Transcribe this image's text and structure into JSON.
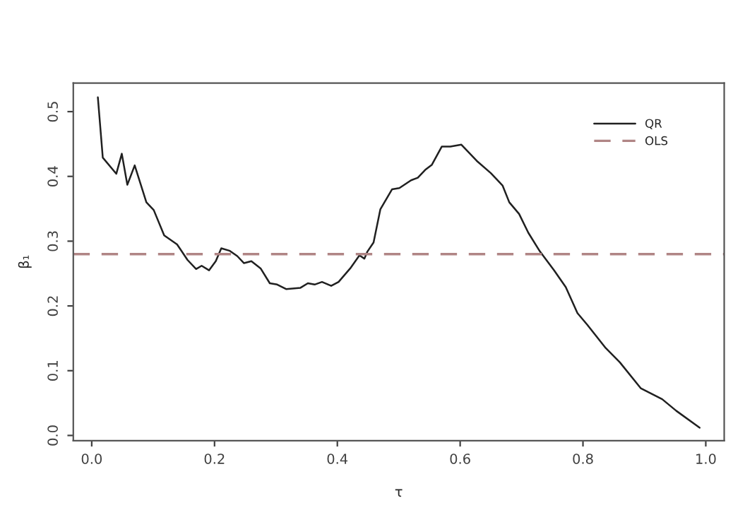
{
  "chart_data": {
    "type": "line",
    "xlabel": "τ",
    "ylabel": "β₁",
    "xlim": [
      -0.03,
      1.03
    ],
    "ylim": [
      -0.008,
      0.544
    ],
    "xticks": [
      {
        "value": 0,
        "label": "0.0"
      },
      0.2,
      0.4,
      0.6,
      0.8,
      {
        "value": 1,
        "label": "1.0"
      }
    ],
    "yticks": [
      {
        "value": 0,
        "label": "0.0"
      },
      0.1,
      0.2,
      0.3,
      0.4,
      0.5
    ],
    "grid": false,
    "legend": "top right",
    "series": [
      {
        "name": "QR",
        "color": "#202020",
        "line_style": "solid",
        "x": [
          0.01,
          0.018,
          0.04,
          0.049,
          0.058,
          0.07,
          0.089,
          0.101,
          0.118,
          0.139,
          0.156,
          0.17,
          0.179,
          0.191,
          0.202,
          0.211,
          0.225,
          0.237,
          0.248,
          0.26,
          0.275,
          0.29,
          0.302,
          0.317,
          0.34,
          0.352,
          0.363,
          0.375,
          0.39,
          0.402,
          0.421,
          0.436,
          0.444,
          0.449,
          0.459,
          0.47,
          0.489,
          0.501,
          0.52,
          0.531,
          0.543,
          0.554,
          0.57,
          0.584,
          0.602,
          0.627,
          0.65,
          0.669,
          0.68,
          0.696,
          0.711,
          0.73,
          0.753,
          0.772,
          0.791,
          0.807,
          0.837,
          0.86,
          0.894,
          0.929,
          0.952,
          0.99
        ],
        "values": [
          0.522,
          0.429,
          0.404,
          0.435,
          0.387,
          0.417,
          0.36,
          0.348,
          0.309,
          0.295,
          0.271,
          0.257,
          0.262,
          0.255,
          0.269,
          0.289,
          0.285,
          0.277,
          0.266,
          0.269,
          0.258,
          0.235,
          0.233,
          0.226,
          0.228,
          0.235,
          0.233,
          0.237,
          0.231,
          0.237,
          0.258,
          0.278,
          0.273,
          0.284,
          0.298,
          0.349,
          0.38,
          0.382,
          0.394,
          0.398,
          0.41,
          0.418,
          0.446,
          0.446,
          0.449,
          0.424,
          0.405,
          0.386,
          0.36,
          0.342,
          0.313,
          0.284,
          0.255,
          0.229,
          0.189,
          0.171,
          0.135,
          0.113,
          0.073,
          0.056,
          0.038,
          0.012
        ]
      }
    ],
    "ref_lines": [
      {
        "axis": "y",
        "value": 0.28,
        "label": "OLS",
        "color": "#b08585",
        "line_style": "dashed"
      }
    ]
  }
}
